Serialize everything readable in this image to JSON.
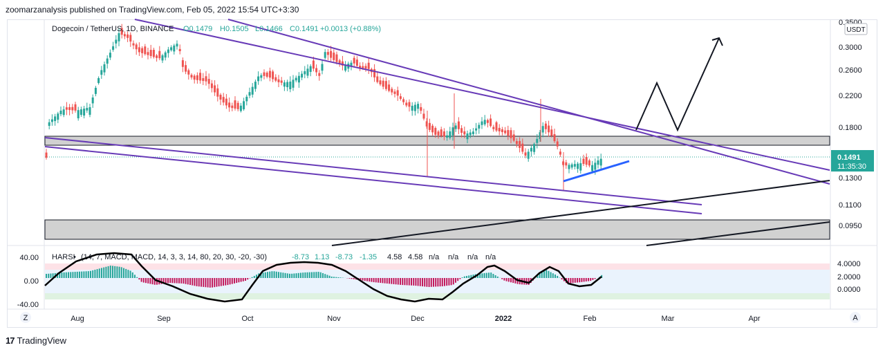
{
  "header": {
    "published": "zoomarzanalysis published on TradingView.com, Feb 05, 2022 15:54 UTC+3:30"
  },
  "legend": {
    "symbol": "Dogecoin / TetherUS, 1D, BINANCE",
    "open": "O0.1479",
    "high": "H0.1505",
    "low": "L0.1466",
    "close": "C0.1491",
    "change": "+0.0013 (+0.88%)"
  },
  "price_scale": {
    "currency": "USDT",
    "ticks": [
      "0.3500",
      "0.3000",
      "0.2600",
      "0.2200",
      "0.1800",
      "0.1300",
      "0.1100",
      "0.0950"
    ],
    "last_price": "0.1491",
    "countdown": "11:35:30"
  },
  "indicator": {
    "name": "HARSI",
    "params": "(14, 7, MACD, MACD, 14, 3, 3, 14, 80, 20, 30, -20, -30)",
    "values": [
      "-8.73",
      "1.13",
      "-8.73",
      "-1.35",
      "4.58",
      "4.58",
      "n/a",
      "n/a",
      "n/a",
      "n/a"
    ],
    "left_ticks": [
      "40.00",
      "0.00",
      "-40.00"
    ],
    "right_ticks": [
      "4.0000",
      "2.0000",
      "0.0000"
    ]
  },
  "time_axis": {
    "labels": [
      "Aug",
      "Sep",
      "Oct",
      "Nov",
      "Dec",
      "2022",
      "Feb",
      "Mar",
      "Apr"
    ]
  },
  "buttons": {
    "zoom": "Z",
    "auto": "A"
  },
  "footer": {
    "brand_logo": "17",
    "brand": "TradingView"
  },
  "colors": {
    "up": "#26a69a",
    "down": "#ef5350",
    "channel": "#673ab7",
    "trend_blue": "#2962ff",
    "zone": "#d1d1d1",
    "price_badge": "#26a69a",
    "harsi_bar_up": "#26a69a",
    "harsi_bar_down": "#c2185b"
  }
}
